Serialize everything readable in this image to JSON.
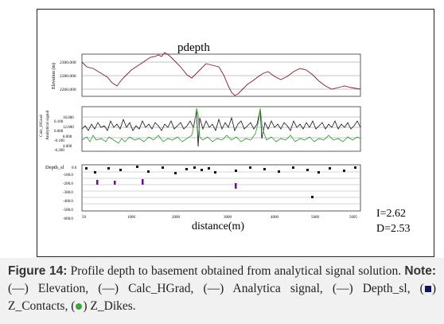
{
  "figure": {
    "title": "pdepth",
    "x_axis_label": "distance(m)",
    "x_ticks": [
      "50",
      "1000",
      "2000",
      "3000",
      "4000",
      "5000",
      "5605"
    ],
    "panels": [
      {
        "id": "elevation",
        "y_label": "Elevation (m)",
        "y_ticks": [
          "2300.000",
          "2280.000",
          "2260.000"
        ],
        "color": "#7b1f2a"
      },
      {
        "id": "grad-signal",
        "y_label_left": "Calc_HGrad",
        "y_label_right": "Analytical signal",
        "y_ticks_left": [
          "0.100",
          "0.000",
          "-0.100",
          "-0.200"
        ],
        "y_ticks_right": [
          "16.000",
          "12.000",
          "8.000",
          "4.000"
        ],
        "colors": {
          "calc_hgrad": "#111111",
          "analytic_signal": "#2e9a2e"
        }
      },
      {
        "id": "depth",
        "y_label": "Depth_sl",
        "y_ticks": [
          "0.0",
          "-100.0",
          "-200.0",
          "-300.0",
          "-400.0",
          "-500.0",
          "-600.0"
        ],
        "colors": {
          "contacts": "#111111",
          "dikes": "#6a0d91"
        }
      }
    ],
    "params": {
      "I": "I=2.62",
      "D": "D=2.53"
    }
  },
  "caption": {
    "label": "Figure 14:",
    "text_1": " Profile depth to basement obtained from analytical signal solution. ",
    "note_label": "Note:",
    "text_2": " (—) Elevation, (—) Calc_HGrad, (—) Analytica signal, (—) Depth_sl, (",
    "text_3": ") Z_Contacts, (",
    "text_4": ") Z_Dikes."
  }
}
